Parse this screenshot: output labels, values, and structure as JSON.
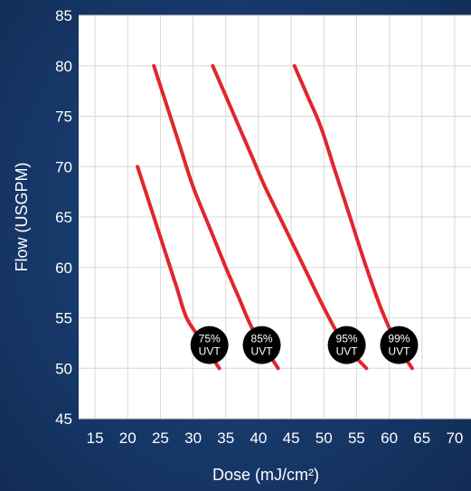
{
  "chart_data": {
    "type": "line",
    "title": "",
    "xlabel": "Dose (mJ/cm²)",
    "ylabel": "Flow (USGPM)",
    "xlim": [
      15,
      70
    ],
    "ylim": [
      45,
      85
    ],
    "xticks": [
      "15",
      "20",
      "25",
      "30",
      "35",
      "40",
      "45",
      "50",
      "55",
      "60",
      "65",
      "70"
    ],
    "yticks": [
      "45",
      "50",
      "55",
      "60",
      "65",
      "70",
      "75",
      "80",
      "85"
    ],
    "grid": true,
    "legend": "none",
    "line_color": "#e0262e",
    "plot_background": "#ffffff",
    "grid_color": "#d8d8d8",
    "series": [
      {
        "label": "75% UVT",
        "label_lines": [
          "75%",
          "UVT"
        ],
        "points": [
          [
            21.5,
            70
          ],
          [
            24,
            65
          ],
          [
            26,
            61
          ],
          [
            27.5,
            58
          ],
          [
            29,
            55
          ],
          [
            31,
            53
          ],
          [
            32.5,
            51.5
          ],
          [
            34,
            50
          ]
        ]
      },
      {
        "label": "85% UVT",
        "label_lines": [
          "85%",
          "UVT"
        ],
        "points": [
          [
            24,
            80
          ],
          [
            26,
            76
          ],
          [
            28,
            72
          ],
          [
            30,
            68
          ],
          [
            32.5,
            64
          ],
          [
            35,
            60
          ],
          [
            37,
            57
          ],
          [
            39,
            54
          ],
          [
            41,
            52
          ],
          [
            43,
            50
          ]
        ]
      },
      {
        "label": "95% UVT",
        "label_lines": [
          "95%",
          "UVT"
        ],
        "points": [
          [
            33,
            80
          ],
          [
            35,
            77
          ],
          [
            37,
            74
          ],
          [
            39,
            71
          ],
          [
            41,
            68
          ],
          [
            44,
            64
          ],
          [
            47,
            60
          ],
          [
            50,
            56
          ],
          [
            53,
            52.5
          ],
          [
            56.5,
            50
          ]
        ]
      },
      {
        "label": "99% UVT",
        "label_lines": [
          "99%",
          "UVT"
        ],
        "points": [
          [
            45.5,
            80
          ],
          [
            47.5,
            77
          ],
          [
            49.5,
            74
          ],
          [
            51.5,
            70
          ],
          [
            54,
            65
          ],
          [
            56.5,
            60
          ],
          [
            59,
            55.5
          ],
          [
            61.5,
            52
          ],
          [
            63.5,
            50
          ]
        ]
      }
    ],
    "badges": [
      {
        "series_index": 0,
        "x": 32.5,
        "y": 52.3
      },
      {
        "series_index": 1,
        "x": 40.5,
        "y": 52.3
      },
      {
        "series_index": 2,
        "x": 53.5,
        "y": 52.3
      },
      {
        "series_index": 3,
        "x": 61.5,
        "y": 52.3
      }
    ]
  }
}
